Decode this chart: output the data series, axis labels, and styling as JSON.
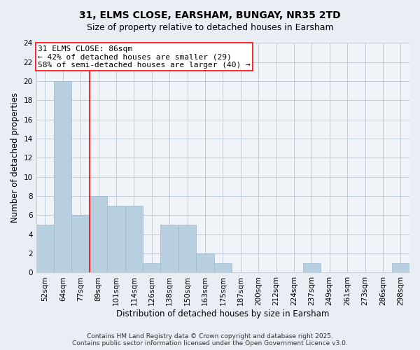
{
  "title": "31, ELMS CLOSE, EARSHAM, BUNGAY, NR35 2TD",
  "subtitle": "Size of property relative to detached houses in Earsham",
  "xlabel": "Distribution of detached houses by size in Earsham",
  "ylabel": "Number of detached properties",
  "bar_color": "#b8cfe0",
  "bar_edge_color": "#9ab8cc",
  "categories": [
    "52sqm",
    "64sqm",
    "77sqm",
    "89sqm",
    "101sqm",
    "114sqm",
    "126sqm",
    "138sqm",
    "150sqm",
    "163sqm",
    "175sqm",
    "187sqm",
    "200sqm",
    "212sqm",
    "224sqm",
    "237sqm",
    "249sqm",
    "261sqm",
    "273sqm",
    "286sqm",
    "298sqm"
  ],
  "values": [
    5,
    20,
    6,
    8,
    7,
    7,
    1,
    5,
    5,
    2,
    1,
    0,
    0,
    0,
    0,
    1,
    0,
    0,
    0,
    0,
    1
  ],
  "ylim": [
    0,
    24
  ],
  "yticks": [
    0,
    2,
    4,
    6,
    8,
    10,
    12,
    14,
    16,
    18,
    20,
    22,
    24
  ],
  "vline_x_index": 2.5,
  "annotation_title": "31 ELMS CLOSE: 86sqm",
  "annotation_line1": "← 42% of detached houses are smaller (29)",
  "annotation_line2": "58% of semi-detached houses are larger (40) →",
  "footer1": "Contains HM Land Registry data © Crown copyright and database right 2025.",
  "footer2": "Contains public sector information licensed under the Open Government Licence v3.0.",
  "background_color": "#e8eef4",
  "plot_bg_color": "#f0f4f8",
  "grid_color": "#c0ccd8",
  "title_fontsize": 10,
  "subtitle_fontsize": 9,
  "axis_label_fontsize": 8.5,
  "tick_fontsize": 7.5,
  "footer_fontsize": 6.5,
  "annotation_fontsize": 8
}
